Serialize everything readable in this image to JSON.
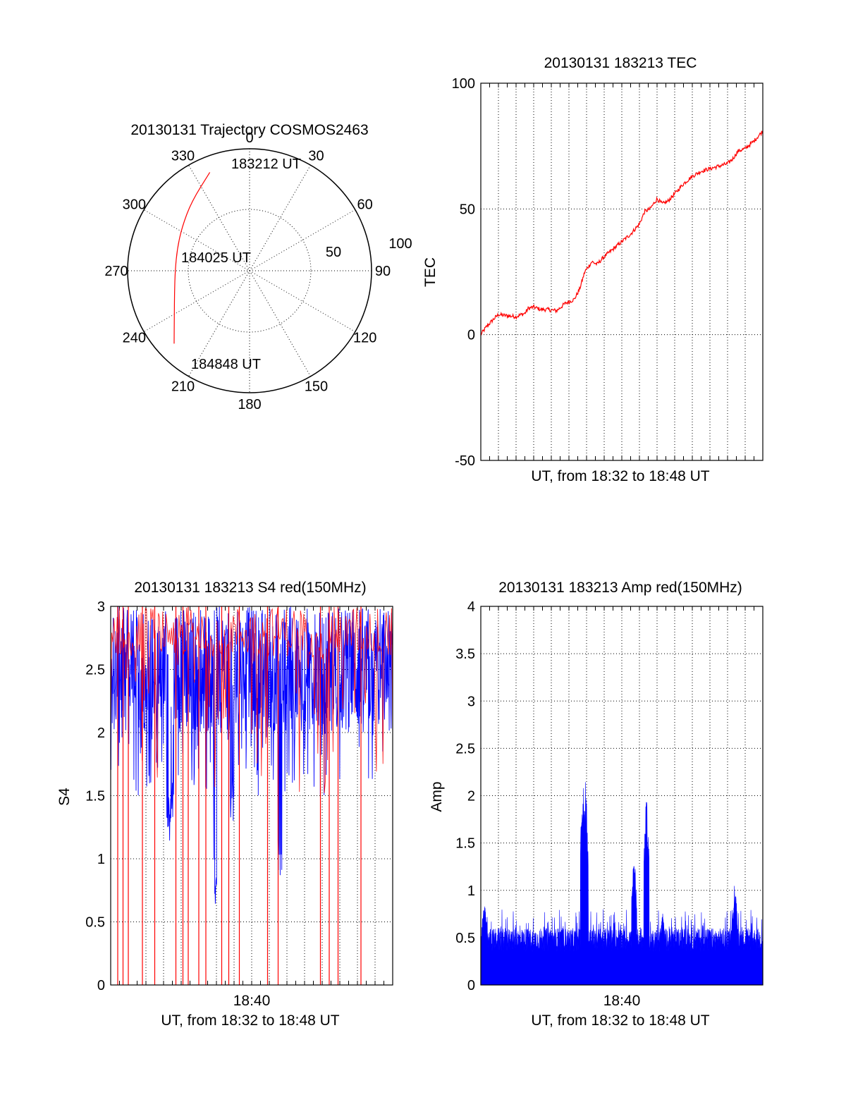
{
  "colors": {
    "red": "#ff0000",
    "blue": "#0000ff",
    "axis": "#000000"
  },
  "chart_data": [
    {
      "id": "trajectory",
      "type": "polar",
      "title": "20130131 Trajectory COSMOS2463",
      "azimuth_labels": [
        "0",
        "30",
        "60",
        "90",
        "120",
        "150",
        "180",
        "210",
        "240",
        "270",
        "300",
        "330"
      ],
      "radius_labels": [
        "50",
        "100"
      ],
      "rlim": [
        0,
        100
      ],
      "series": [
        {
          "color": "red",
          "points": [
            {
              "azimuth": 338,
              "r": 87
            },
            {
              "azimuth": 320,
              "r": 74
            },
            {
              "azimuth": 303,
              "r": 66
            },
            {
              "azimuth": 287,
              "r": 62
            },
            {
              "azimuth": 270,
              "r": 61
            },
            {
              "azimuth": 254,
              "r": 64
            },
            {
              "azimuth": 239,
              "r": 72
            },
            {
              "azimuth": 226,
              "r": 86
            }
          ]
        }
      ],
      "annotations": [
        {
          "text": "183212 UT",
          "azimuth": 338,
          "r": 87
        },
        {
          "text": "184025 UT",
          "azimuth": 0,
          "r": 0
        },
        {
          "text": "184848 UT",
          "azimuth": 226,
          "r": 86
        }
      ]
    },
    {
      "id": "tec",
      "type": "line",
      "title": "20130131 183213 TEC",
      "xlabel": "UT, from 18:32 to 18:48 UT",
      "ylabel": "TEC",
      "ylim": [
        -50,
        100
      ],
      "yticks": [
        "-50",
        "0",
        "50",
        "100"
      ],
      "xlim_minutes": [
        0,
        16
      ],
      "grid": true,
      "series": [
        {
          "color": "red",
          "x": [
            0,
            0.3,
            0.7,
            1.0,
            1.5,
            2.0,
            2.5,
            2.7,
            3.0,
            3.4,
            3.8,
            4.3,
            4.8,
            5.3,
            5.6,
            5.9,
            6.0,
            6.3,
            6.6,
            7.0,
            7.5,
            8.0,
            8.5,
            9.0,
            9.3,
            9.6,
            10.0,
            10.3,
            10.6,
            11.0,
            11.5,
            12.0,
            12.5,
            13.0,
            13.5,
            14.0,
            14.3,
            14.6,
            15.0,
            15.5,
            16.0
          ],
          "y": [
            0,
            3,
            6,
            8,
            7.5,
            7.2,
            8.5,
            10.5,
            11,
            10,
            10,
            9.5,
            12.5,
            14,
            18,
            25,
            26,
            29,
            28,
            31,
            34,
            37,
            40,
            44,
            49,
            50,
            54,
            52,
            53,
            56,
            60,
            63,
            65,
            66,
            67,
            68,
            70,
            73,
            74,
            77,
            81
          ]
        }
      ]
    },
    {
      "id": "s4",
      "type": "line",
      "title": "20130131 183213 S4 red(150MHz)",
      "xlabel": "UT, from 18:32 to 18:48 UT",
      "ylabel": "S4",
      "ylim": [
        0,
        3
      ],
      "yticks": [
        "0",
        "0.5",
        "1",
        "1.5",
        "2",
        "2.5",
        "3"
      ],
      "xticks": [
        "18:40"
      ],
      "xtick_minutes": [
        8
      ],
      "xlim_minutes": [
        0,
        16
      ],
      "grid": true,
      "series": [
        {
          "color": "blue",
          "description": "dense noisy trace, mostly between 2 and 3 with dips",
          "dips": [
            [
              3.3,
              1.1
            ],
            [
              5.9,
              0.6
            ],
            [
              9.6,
              0.8
            ],
            [
              6.9,
              1.3
            ],
            [
              3.5,
              1.3
            ]
          ]
        },
        {
          "color": "red",
          "description": "sparse spikes reaching 0",
          "drops_to_zero_at": [
            0.4,
            0.7,
            1.0,
            1.8,
            2.5,
            3.7,
            4.1,
            4.4,
            5.0,
            5.4,
            6.3,
            6.7,
            7.3,
            8.9,
            9.5,
            11.9,
            12.4,
            12.9,
            14.2
          ]
        }
      ]
    },
    {
      "id": "amp",
      "type": "line",
      "title": "20130131 183213 Amp red(150MHz)",
      "xlabel": "UT, from 18:32 to 18:48 UT",
      "ylabel": "Amp",
      "ylim": [
        0,
        4
      ],
      "yticks": [
        "0",
        "0.5",
        "1",
        "1.5",
        "2",
        "2.5",
        "3",
        "3.5",
        "4"
      ],
      "xticks": [
        "18:40"
      ],
      "xtick_minutes": [
        8
      ],
      "xlim_minutes": [
        0,
        16
      ],
      "grid": true,
      "series": [
        {
          "color": "blue",
          "baseline": 0.5,
          "peaks": [
            [
              5.8,
              2.3
            ],
            [
              5.95,
              2.2
            ],
            [
              9.4,
              2.05
            ],
            [
              8.7,
              1.4
            ],
            [
              14.4,
              1.1
            ],
            [
              0.2,
              0.9
            ],
            [
              10.3,
              0.8
            ]
          ]
        }
      ]
    }
  ]
}
